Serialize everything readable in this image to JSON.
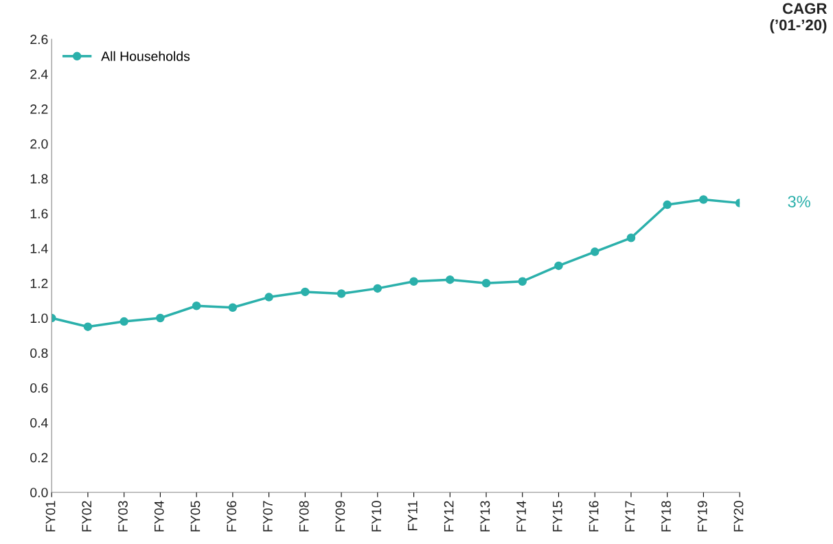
{
  "chart_data": {
    "type": "line",
    "categories": [
      "FY01",
      "FY02",
      "FY03",
      "FY04",
      "FY05",
      "FY06",
      "FY07",
      "FY08",
      "FY09",
      "FY10",
      "FY11",
      "FY12",
      "FY13",
      "FY14",
      "FY15",
      "FY16",
      "FY17",
      "FY18",
      "FY19",
      "FY20"
    ],
    "series": [
      {
        "name": "All Households",
        "color": "#2bb0ab",
        "values": [
          1.0,
          0.95,
          0.98,
          1.0,
          1.07,
          1.06,
          1.12,
          1.15,
          1.14,
          1.17,
          1.21,
          1.22,
          1.2,
          1.21,
          1.3,
          1.38,
          1.46,
          1.65,
          1.68,
          1.66
        ]
      }
    ],
    "ylim": [
      0,
      2.6
    ],
    "yticks": [
      {
        "value": 0,
        "label": "0.0"
      },
      {
        "value": 0.2,
        "label": "0.2"
      },
      {
        "value": 0.4,
        "label": "0.4"
      },
      {
        "value": 0.6,
        "label": "0.6"
      },
      {
        "value": 0.8,
        "label": "0.8"
      },
      {
        "value": 1.0,
        "label": "1.0"
      },
      {
        "value": 1.2,
        "label": "1.2"
      },
      {
        "value": 1.4,
        "label": "1.4"
      },
      {
        "value": 1.6,
        "label": "1.6"
      },
      {
        "value": 1.8,
        "label": "1.8"
      },
      {
        "value": 2.0,
        "label": "2.0"
      },
      {
        "value": 2.2,
        "label": "2.2"
      },
      {
        "value": 2.4,
        "label": "2.4"
      },
      {
        "value": 2.6,
        "label": "2.6"
      }
    ],
    "annotations": [
      "CAGR\n(’01-’20)",
      {
        "text": "3%",
        "x": "FY20",
        "y": 1.66
      }
    ],
    "legend": "top left",
    "grid": false,
    "marker": "circle",
    "line_style": "solid"
  }
}
